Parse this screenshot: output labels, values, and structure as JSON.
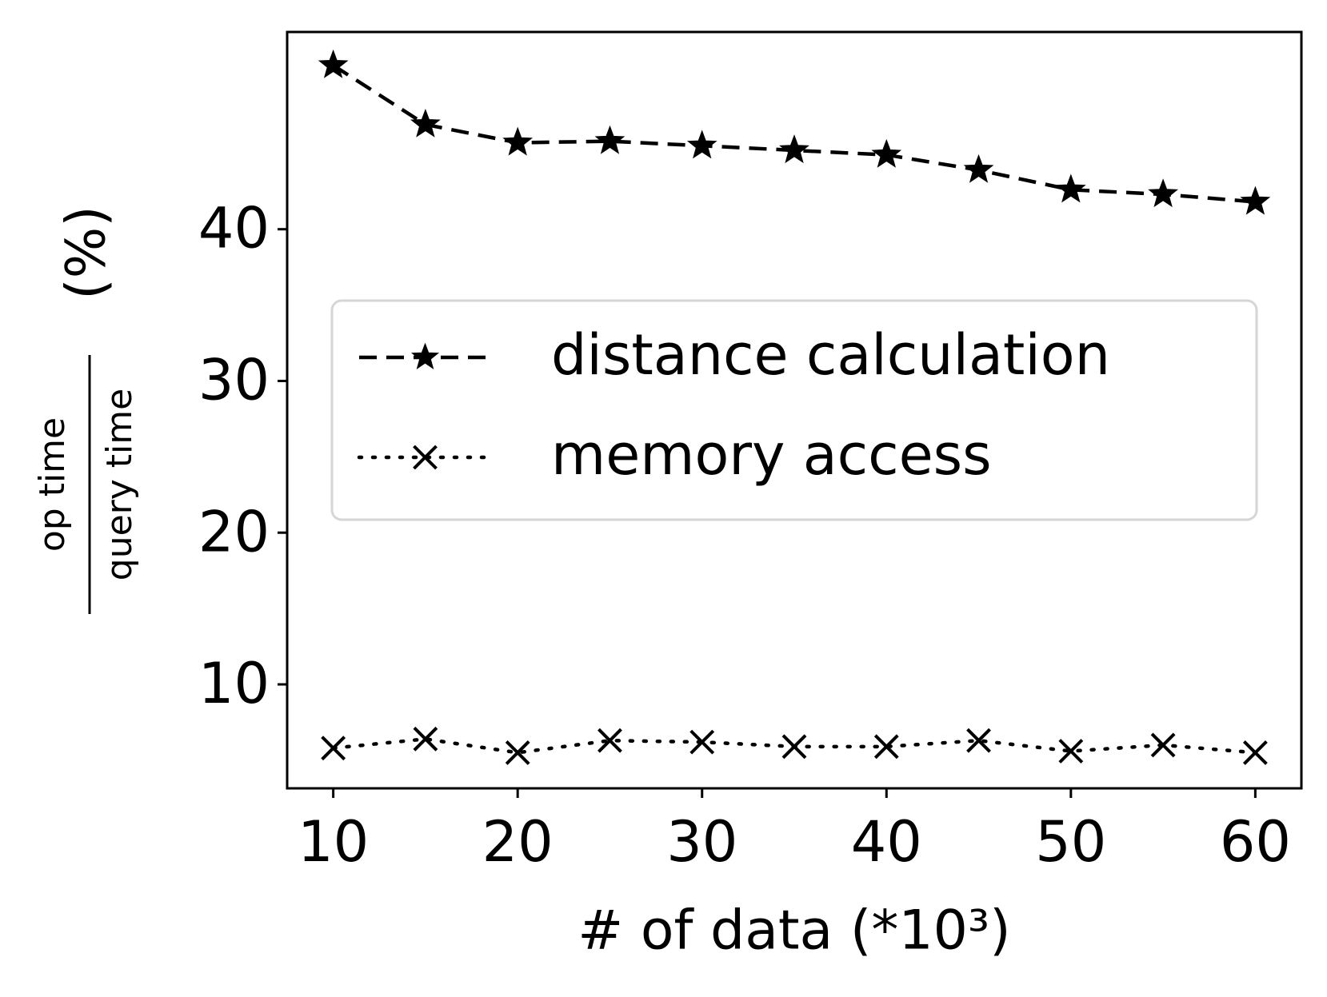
{
  "chart_data": {
    "type": "line",
    "x": [
      10,
      15,
      20,
      25,
      30,
      35,
      40,
      45,
      50,
      55,
      60
    ],
    "series": [
      {
        "name": "distance calculation",
        "color": "#000000",
        "linestyle": "dashed",
        "marker": "star",
        "values": [
          50.8,
          46.9,
          45.7,
          45.8,
          45.5,
          45.2,
          44.9,
          43.9,
          42.6,
          42.3,
          41.8
        ]
      },
      {
        "name": "memory access",
        "color": "#000000",
        "linestyle": "dotted",
        "marker": "x",
        "values": [
          5.8,
          6.4,
          5.5,
          6.3,
          6.2,
          5.9,
          5.9,
          6.3,
          5.6,
          6.0,
          5.5
        ]
      }
    ],
    "xlabel": "# of data (*10³)",
    "ylabel": {
      "numerator": "op time",
      "denominator": "query time",
      "unit": "(%)"
    },
    "xlim": [
      7.5,
      62.5
    ],
    "xticks": [
      10,
      20,
      30,
      40,
      50,
      60
    ],
    "ylim": [
      3.15,
      53.0
    ],
    "yticks": [
      10,
      20,
      30,
      40
    ],
    "legend": "center"
  }
}
